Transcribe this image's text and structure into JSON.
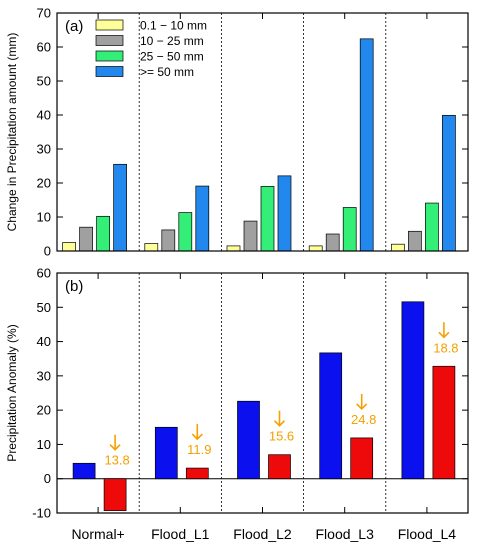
{
  "chart_data": [
    {
      "type": "bar",
      "panel_label": "(a)",
      "categories": [
        "Normal+",
        "Flood_L1",
        "Flood_L2",
        "Flood_L3",
        "Flood_L4"
      ],
      "series": [
        {
          "name": "0.1 − 10 mm",
          "values": [
            2.5,
            2.2,
            1.5,
            1.5,
            2.0
          ]
        },
        {
          "name": "10 − 25  mm",
          "values": [
            7.0,
            6.2,
            8.8,
            5.0,
            5.8
          ]
        },
        {
          "name": "25 − 50  mm",
          "values": [
            10.2,
            11.3,
            19.0,
            12.8,
            14.1
          ]
        },
        {
          "name": ">= 50  mm",
          "values": [
            25.5,
            19.1,
            22.1,
            62.4,
            39.9
          ]
        }
      ],
      "xlabel": "",
      "ylabel": "Change in Precipitation amount (mm)",
      "ylim": [
        0,
        70
      ],
      "yticks": [
        0,
        10,
        20,
        30,
        40,
        50,
        60,
        70
      ],
      "grid": "dotted vertical lines between categories",
      "legend_position": "top-left"
    },
    {
      "type": "bar",
      "panel_label": "(b)",
      "categories": [
        "Normal+",
        "Flood_L1",
        "Flood_L2",
        "Flood_L3",
        "Flood_L4"
      ],
      "series": [
        {
          "values": [
            4.5,
            15.0,
            22.6,
            36.7,
            51.6
          ]
        },
        {
          "values": [
            -9.3,
            3.1,
            7.0,
            11.9,
            32.8
          ]
        }
      ],
      "annotations": [
        "13.8",
        "11.9",
        "15.6",
        "24.8",
        "18.8"
      ],
      "xlabel": "",
      "ylabel": "Precipitation Anomaly (%)",
      "ylim": [
        -10,
        60
      ],
      "yticks": [
        -10,
        0,
        10,
        20,
        30,
        40,
        50,
        60
      ],
      "grid": "dotted vertical lines between categories",
      "legend_position": "none"
    }
  ],
  "colors": {
    "s1": "#ffff99",
    "s2": "#a0a0a0",
    "s3": "#33ee77",
    "s4": "#2288ee",
    "blue": "#0a10ee",
    "red": "#ee0a0a",
    "annotation": "#f5a000"
  }
}
